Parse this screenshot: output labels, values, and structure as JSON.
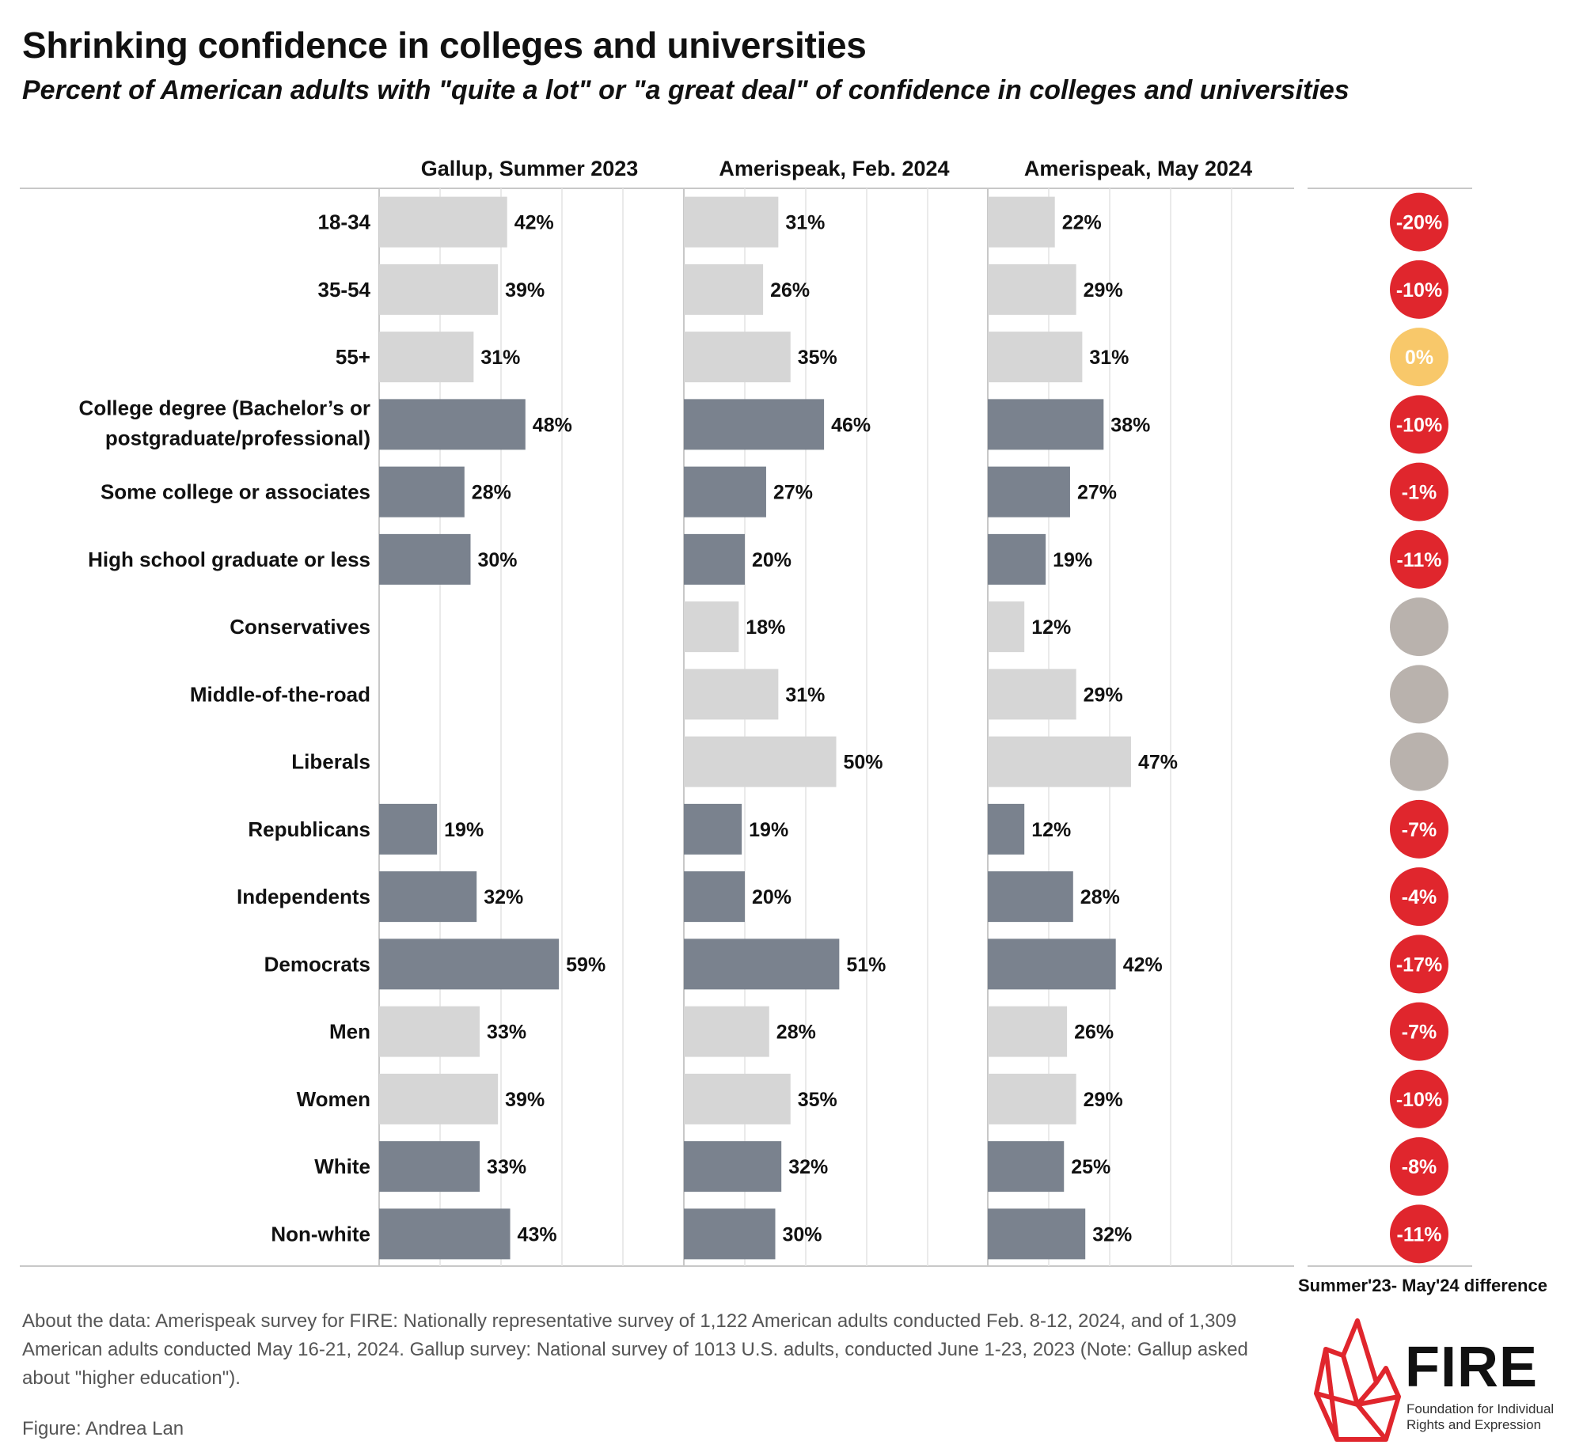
{
  "header": {
    "title": "Shrinking confidence in colleges and universities",
    "subtitle": "Percent of American adults with \"quite a lot\" or \"a great deal\" of confidence in colleges and universities"
  },
  "chart_data": {
    "type": "bar",
    "orientation": "horizontal",
    "title": "Shrinking confidence in colleges and universities",
    "subtitle": "Percent of American adults with \"quite a lot\" or \"a great deal\" of confidence in colleges and universities",
    "xlim": [
      0,
      100
    ],
    "grid": true,
    "categories": [
      "18-34",
      "35-54",
      "55+",
      "College degree (Bachelor’s or postgraduate/professional)",
      "Some college or associates",
      "High school graduate or less",
      "Conservatives",
      "Middle-of-the-road",
      "Liberals",
      "Republicans",
      "Independents",
      "Democrats",
      "Men",
      "Women",
      "White",
      "Non-white"
    ],
    "category_lines": [
      [
        "18-34"
      ],
      [
        "35-54"
      ],
      [
        "55+"
      ],
      [
        "College degree (Bachelor’s or",
        "postgraduate/professional)"
      ],
      [
        "Some college or associates"
      ],
      [
        "High school graduate or less"
      ],
      [
        "Conservatives"
      ],
      [
        "Middle-of-the-road"
      ],
      [
        "Liberals"
      ],
      [
        "Republicans"
      ],
      [
        "Independents"
      ],
      [
        "Democrats"
      ],
      [
        "Men"
      ],
      [
        "Women"
      ],
      [
        "White"
      ],
      [
        "Non-white"
      ]
    ],
    "group_shading": [
      "light",
      "light",
      "light",
      "dark",
      "dark",
      "dark",
      "light",
      "light",
      "light",
      "dark",
      "dark",
      "dark",
      "light",
      "light",
      "dark",
      "dark"
    ],
    "series": [
      {
        "name": "Gallup, Summer 2023",
        "values": [
          42,
          39,
          31,
          48,
          28,
          30,
          null,
          null,
          null,
          19,
          32,
          59,
          33,
          39,
          33,
          43
        ]
      },
      {
        "name": "Amerispeak, Feb. 2024",
        "values": [
          31,
          26,
          35,
          46,
          27,
          20,
          18,
          31,
          50,
          19,
          20,
          51,
          28,
          35,
          32,
          30
        ]
      },
      {
        "name": "Amerispeak, May 2024",
        "values": [
          22,
          29,
          31,
          38,
          27,
          19,
          12,
          29,
          47,
          12,
          28,
          42,
          26,
          29,
          25,
          32
        ]
      }
    ],
    "difference": {
      "label": "Summer'23- May'24 difference",
      "values": [
        -20,
        -10,
        0,
        -10,
        -1,
        -11,
        null,
        null,
        null,
        -7,
        -4,
        -17,
        -7,
        -10,
        -8,
        -11
      ],
      "display": [
        "-20%",
        "-10%",
        "0%",
        "-10%",
        "-1%",
        "-11%",
        "",
        "",
        "",
        "-7%",
        "-4%",
        "-17%",
        "-7%",
        "-10%",
        "-8%",
        "-11%"
      ]
    },
    "colors": {
      "bar_light": "#d6d6d6",
      "bar_dark": "#7a828e",
      "decrease": "#e0262d",
      "no_change": "#f8c86a",
      "no_data": "#b9b2ad",
      "grid": "#e4e4e4",
      "axis": "#c8c8c8"
    }
  },
  "footer": {
    "about": "About the data: Amerispeak survey for FIRE: Nationally representative survey of 1,122 American adults conducted Feb. 8-12, 2024, and of 1,309 American adults conducted May 16-21, 2024. Gallup survey: National survey of 1013 U.S. adults, conducted June 1-23, 2023 (Note: Gallup asked about \"higher education\").",
    "credit": "Figure: Andrea Lan"
  },
  "logo": {
    "wordmark": "FIRE",
    "tagline": "Foundation for Individual Rights and Expression",
    "flame_color": "#e0262d"
  }
}
